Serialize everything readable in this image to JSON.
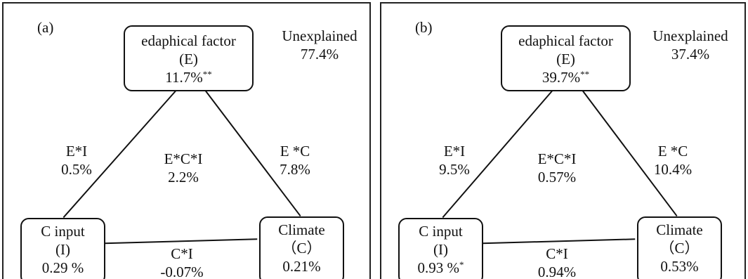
{
  "panels": [
    {
      "letter": "(a)",
      "top_box": {
        "line1": "edaphical factor",
        "line2": "(E)",
        "value": "11.7%",
        "sig": "**"
      },
      "unexplained": {
        "label": "Unexplained",
        "value": "77.4%"
      },
      "ei": {
        "label": "E*I",
        "value": "0.5%"
      },
      "eci": {
        "label": "E*C*I",
        "value": "2.2%"
      },
      "ec": {
        "label": "E *C",
        "value": "7.8%"
      },
      "left_box": {
        "line1": "C input",
        "line2": "(I)",
        "value": "0.29 %",
        "sig": ""
      },
      "right_box": {
        "line1": "Climate",
        "line2": "（C）",
        "value": "0.21%"
      },
      "ci": {
        "label": "C*I",
        "value": "-0.07%"
      }
    },
    {
      "letter": "(b)",
      "top_box": {
        "line1": "edaphical factor",
        "line2": "(E)",
        "value": "39.7%",
        "sig": "**"
      },
      "unexplained": {
        "label": "Unexplained",
        "value": "37.4%"
      },
      "ei": {
        "label": "E*I",
        "value": "9.5%"
      },
      "eci": {
        "label": "E*C*I",
        "value": "0.57%"
      },
      "ec": {
        "label": "E *C",
        "value": "10.4%"
      },
      "left_box": {
        "line1": "C input",
        "line2": "(I)",
        "value": "0.93 %",
        "sig": "*"
      },
      "right_box": {
        "line1": "Climate",
        "line2": "（C）",
        "value": "0.53%"
      },
      "ci": {
        "label": "C*I",
        "value": "0.94%"
      }
    }
  ]
}
